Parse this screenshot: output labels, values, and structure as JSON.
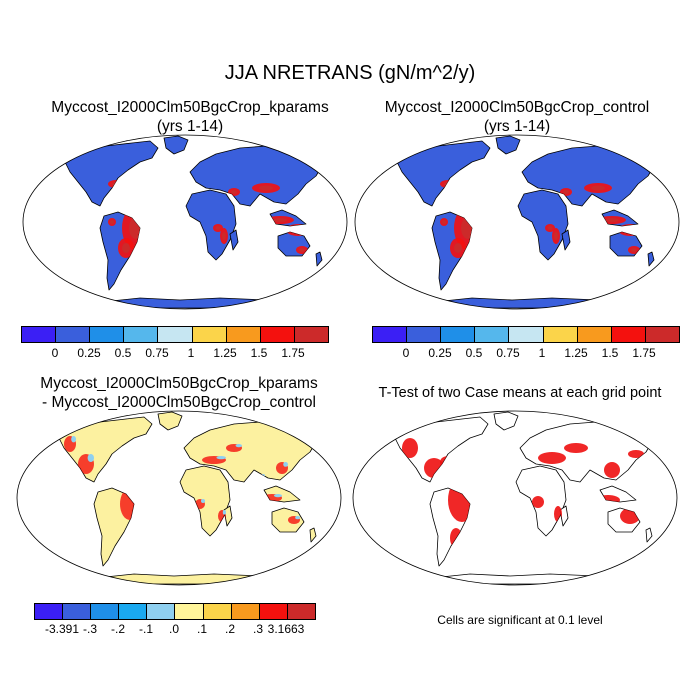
{
  "title": "JJA NRETRANS (gN/m^2/y)",
  "panels": {
    "top_left": {
      "line1": "Myccost_I2000Clm50BgcCrop_kparams",
      "line2": "(yrs 1-14)"
    },
    "top_right": {
      "line1": "Myccost_I2000Clm50BgcCrop_control",
      "line2": "(yrs 1-14)"
    },
    "bottom_left": {
      "line1": "Myccost_I2000Clm50BgcCrop_kparams",
      "line2": "- Myccost_I2000Clm50BgcCrop_control"
    },
    "bottom_right": {
      "line1": "T-Test of two Case means at each grid point"
    }
  },
  "colorbars": {
    "abs": {
      "colors": [
        "#3b1ff5",
        "#3a5fdc",
        "#1f8fe8",
        "#55b7ec",
        "#c6e6f2",
        "#fbd44a",
        "#f89a1e",
        "#f4110e",
        "#cc2a2a"
      ],
      "labels": [
        "0",
        "0.25",
        "0.5",
        "0.75",
        "1",
        "1.25",
        "1.5",
        "1.75"
      ]
    },
    "diff": {
      "colors": [
        "#3b1ff5",
        "#3a5fdc",
        "#1f8fe8",
        "#1aa9f0",
        "#8fd0f0",
        "#fff59a",
        "#fbd44a",
        "#f89a1e",
        "#f4110e",
        "#cc2a2a"
      ],
      "labels": [
        "-3.391",
        "-.3",
        "-.2",
        "-.1",
        ".0",
        ".1",
        ".2",
        ".3",
        "3.1663"
      ]
    }
  },
  "significance_note": "Cells are significant at 0.1 level",
  "map_fills": {
    "ocean": "#ffffff",
    "abs_land": "#3a5fdc",
    "diff_land": "#fcf1a0",
    "ttest_land": "#ffffff",
    "significant": "#ee1010"
  }
}
